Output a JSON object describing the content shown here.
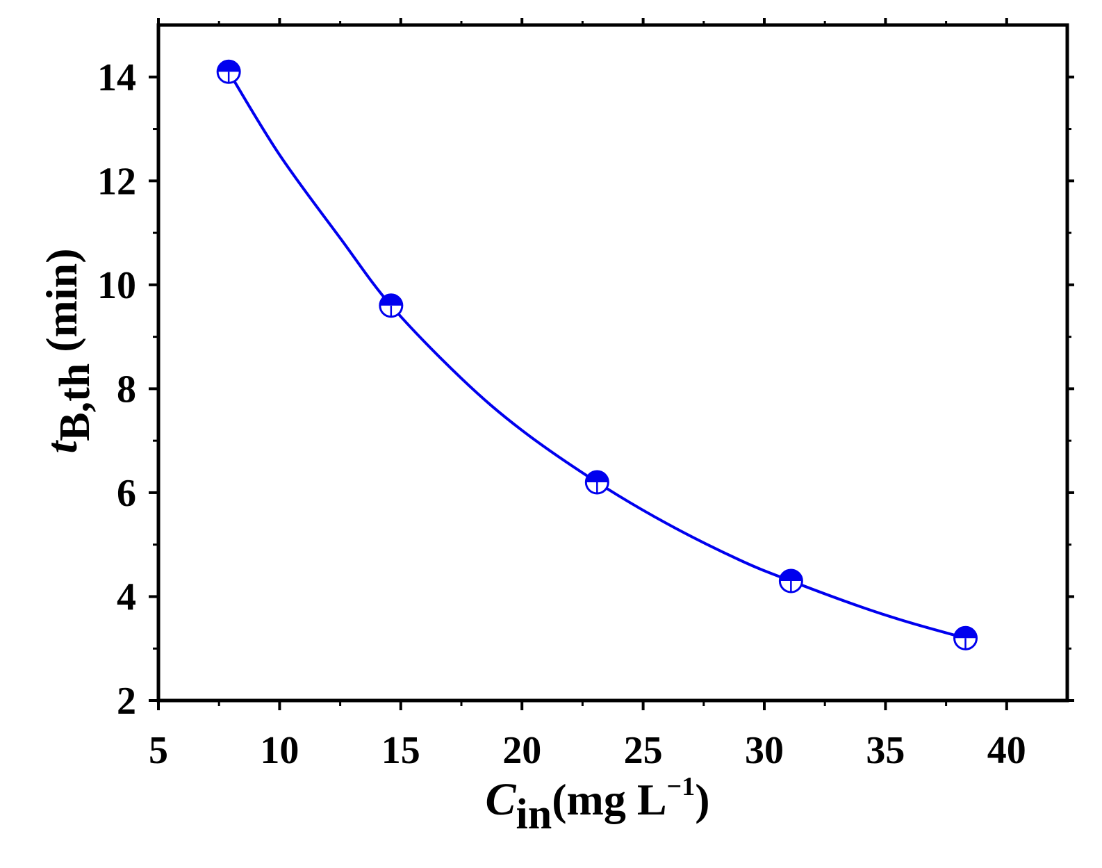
{
  "chart_data": {
    "type": "scatter",
    "title": "",
    "xlabel": {
      "symbol": "C",
      "subscript": "in",
      "units_text": "(mg L",
      "superscript": "−1",
      "close": ")"
    },
    "ylabel": {
      "symbol": "t",
      "subscript": "B,th",
      "units_text": " (min)"
    },
    "xlim": [
      5,
      42.5
    ],
    "ylim": [
      2,
      15
    ],
    "x_ticks": [
      5,
      10,
      15,
      20,
      25,
      30,
      35,
      40
    ],
    "y_ticks": [
      2,
      4,
      6,
      8,
      10,
      12,
      14
    ],
    "x_minor_step": 2.5,
    "y_minor_step": 1,
    "grid": false,
    "legend": "none",
    "colors": {
      "series": "#0000ee",
      "axis": "#000000"
    },
    "series": [
      {
        "marker": "half-filled-circle",
        "x": [
          7.9,
          14.6,
          23.1,
          31.1,
          38.3
        ],
        "y": [
          14.1,
          9.6,
          6.2,
          4.3,
          3.2
        ]
      }
    ],
    "fit_curve": {
      "style": "smooth-line",
      "x": [
        7.9,
        10,
        12.5,
        14.6,
        17.5,
        20,
        23.1,
        26,
        29,
        31.1,
        34,
        36,
        38.3
      ],
      "y": [
        14.1,
        12.5,
        10.9,
        9.6,
        8.2,
        7.2,
        6.2,
        5.4,
        4.7,
        4.3,
        3.8,
        3.5,
        3.2
      ]
    }
  }
}
